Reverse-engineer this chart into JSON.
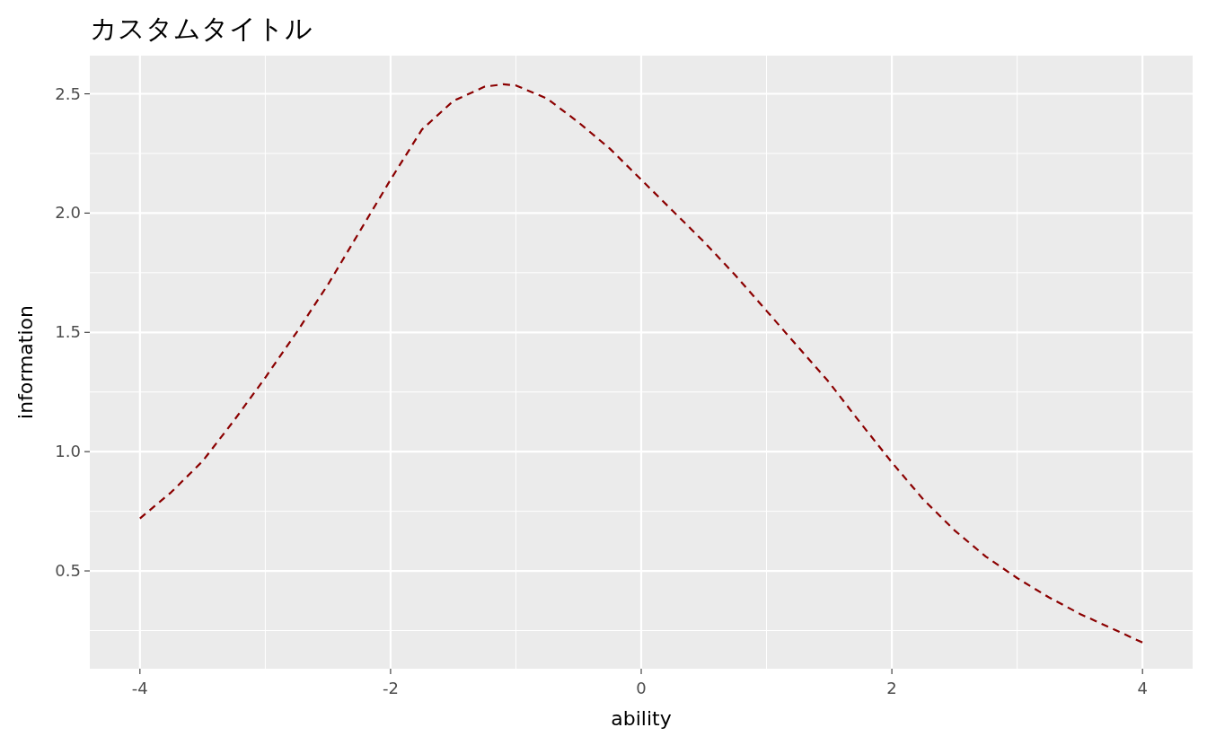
{
  "chart_data": {
    "type": "line",
    "title": "カスタムタイトル",
    "xlabel": "ability",
    "ylabel": "information",
    "x": [
      -4,
      -3.75,
      -3.5,
      -3.25,
      -3,
      -2.75,
      -2.5,
      -2.25,
      -2,
      -1.75,
      -1.5,
      -1.25,
      -1.1,
      -1,
      -0.75,
      -0.5,
      -0.25,
      0,
      0.25,
      0.5,
      0.75,
      1,
      1.25,
      1.5,
      1.75,
      2,
      2.25,
      2.5,
      2.75,
      3,
      3.25,
      3.5,
      3.75,
      4
    ],
    "series": [
      {
        "color": "#8b0000",
        "values": [
          0.72,
          0.83,
          0.96,
          1.13,
          1.31,
          1.5,
          1.7,
          1.92,
          2.14,
          2.35,
          2.47,
          2.53,
          2.54,
          2.535,
          2.48,
          2.38,
          2.27,
          2.14,
          2.01,
          1.88,
          1.74,
          1.59,
          1.44,
          1.29,
          1.12,
          0.955,
          0.8,
          0.67,
          0.56,
          0.47,
          0.39,
          0.32,
          0.26,
          0.2
        ]
      }
    ],
    "xlim": [
      -4.4,
      4.4
    ],
    "ylim": [
      0.09,
      2.66
    ],
    "xticks": [
      -4,
      -2,
      0,
      2,
      4
    ],
    "yticks": [
      0.5,
      {
        "value": 1,
        "label": "1.0"
      },
      1.5,
      {
        "value": 2,
        "label": "2.0"
      },
      2.5
    ],
    "grid": true,
    "line_style": "dashed",
    "marker": "none"
  }
}
